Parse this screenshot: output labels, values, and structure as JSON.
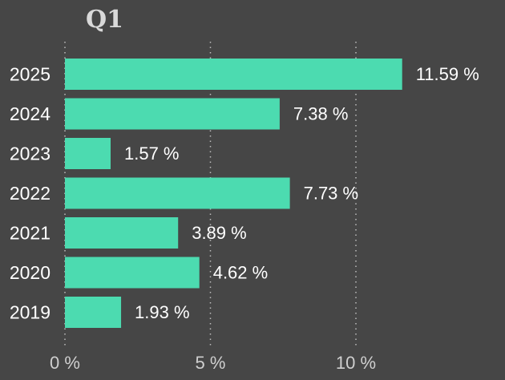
{
  "chart_data": {
    "type": "bar",
    "orientation": "horizontal",
    "title": "Q1",
    "categories": [
      "2025",
      "2024",
      "2023",
      "2022",
      "2021",
      "2020",
      "2019"
    ],
    "values": [
      11.59,
      7.38,
      1.57,
      7.73,
      3.89,
      4.62,
      1.93
    ],
    "value_labels": [
      "11.59 %",
      "7.38 %",
      "1.57 %",
      "7.73 %",
      "3.89 %",
      "4.62 %",
      "1.93 %"
    ],
    "xlim": [
      0,
      12.5
    ],
    "x_ticks": [
      0,
      5,
      10
    ],
    "x_tick_labels": [
      "0 %",
      "5 %",
      "10 %"
    ],
    "xlabel": "",
    "ylabel": "",
    "grid": "vertical dotted",
    "legend": "none",
    "colors": {
      "background": "#464646",
      "bar": "#4cdbb0",
      "text": "#ffffff",
      "tick_text": "#cfcfcf",
      "title": "#d9d9d9",
      "grid": "#bdbdbd"
    }
  }
}
